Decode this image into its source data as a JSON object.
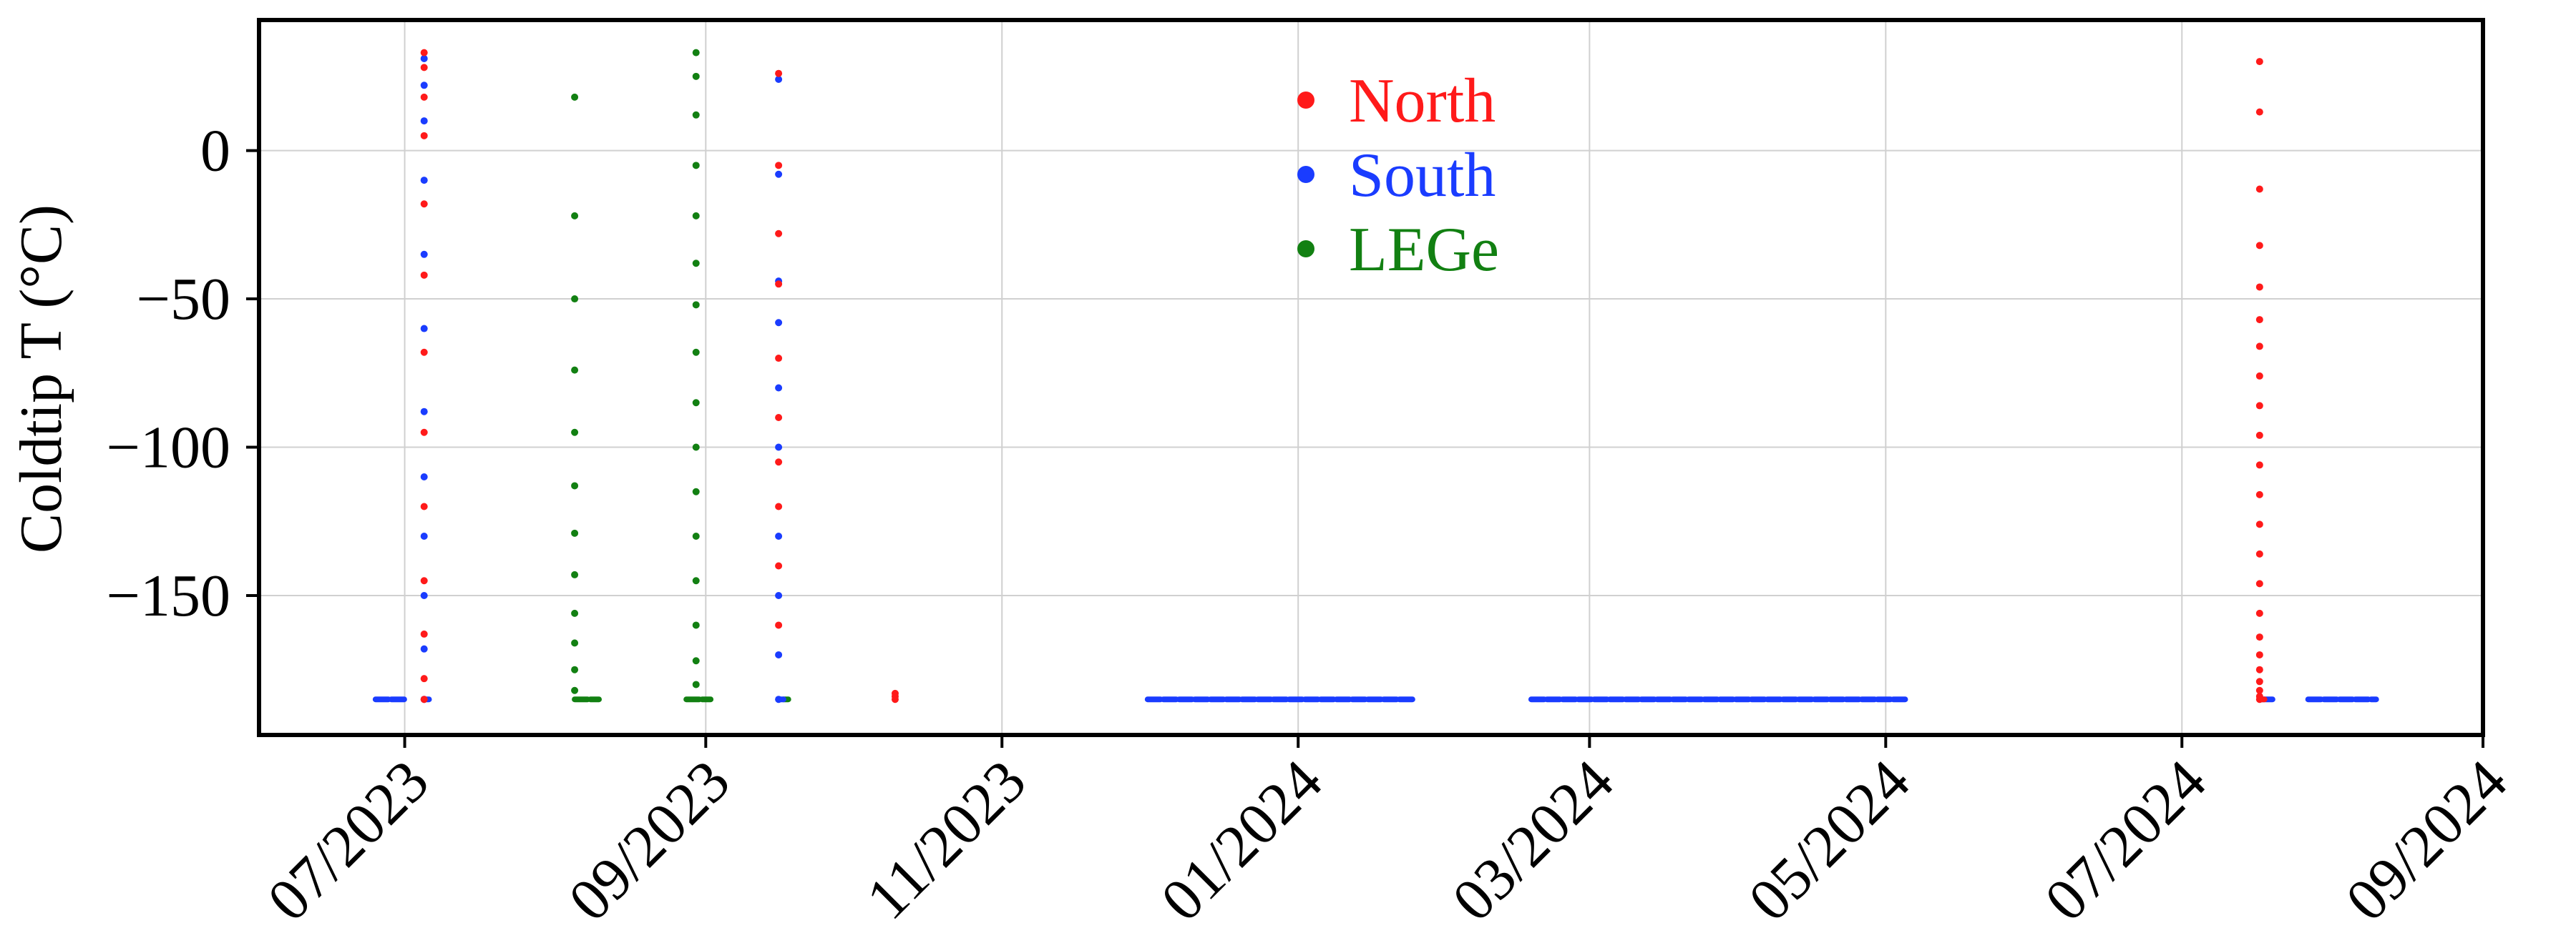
{
  "chart_data": {
    "type": "scatter",
    "title": "",
    "xlabel": "",
    "ylabel": "Coldtip T (°C)",
    "xlim": [
      "2023-06-01",
      "2024-09-01"
    ],
    "ylim": [
      -197,
      44
    ],
    "x_ticks": [
      "2023-07-01",
      "2023-09-01",
      "2023-11-01",
      "2024-01-01",
      "2024-03-01",
      "2024-05-01",
      "2024-07-01",
      "2024-09-01"
    ],
    "x_tick_labels": [
      "07/2023",
      "09/2023",
      "11/2023",
      "01/2024",
      "03/2024",
      "05/2024",
      "07/2024",
      "09/2024"
    ],
    "y_ticks": [
      0,
      -50,
      -100,
      -150
    ],
    "y_tick_labels": [
      "0",
      "−50",
      "−100",
      "−150"
    ],
    "grid": true,
    "legend_position": "top-center",
    "series": [
      {
        "name": "North",
        "color": "#ff1a1a",
        "points": [
          [
            "2023-07-05",
            -185
          ],
          [
            "2023-07-05",
            -178
          ],
          [
            "2023-07-05",
            -163
          ],
          [
            "2023-07-05",
            -145
          ],
          [
            "2023-07-05",
            -120
          ],
          [
            "2023-07-05",
            -95
          ],
          [
            "2023-07-05",
            -68
          ],
          [
            "2023-07-05",
            -42
          ],
          [
            "2023-07-05",
            -18
          ],
          [
            "2023-07-05",
            5
          ],
          [
            "2023-07-05",
            18
          ],
          [
            "2023-07-05",
            28
          ],
          [
            "2023-07-05",
            33
          ],
          [
            "2023-09-16",
            26
          ],
          [
            "2023-09-16",
            -5
          ],
          [
            "2023-09-16",
            -28
          ],
          [
            "2023-09-16",
            -45
          ],
          [
            "2023-09-16",
            -70
          ],
          [
            "2023-09-16",
            -90
          ],
          [
            "2023-09-16",
            -105
          ],
          [
            "2023-09-16",
            -120
          ],
          [
            "2023-09-16",
            -140
          ],
          [
            "2023-09-16",
            -160
          ],
          [
            "2023-10-10",
            -185
          ],
          [
            "2023-10-10",
            -184
          ],
          [
            "2023-10-10",
            -183
          ],
          [
            "2024-07-17",
            30
          ],
          [
            "2024-07-17",
            13
          ],
          [
            "2024-07-17",
            -13
          ],
          [
            "2024-07-17",
            -32
          ],
          [
            "2024-07-17",
            -46
          ],
          [
            "2024-07-17",
            -57
          ],
          [
            "2024-07-17",
            -66
          ],
          [
            "2024-07-17",
            -76
          ],
          [
            "2024-07-17",
            -86
          ],
          [
            "2024-07-17",
            -96
          ],
          [
            "2024-07-17",
            -106
          ],
          [
            "2024-07-17",
            -116
          ],
          [
            "2024-07-17",
            -126
          ],
          [
            "2024-07-17",
            -136
          ],
          [
            "2024-07-17",
            -146
          ],
          [
            "2024-07-17",
            -156
          ],
          [
            "2024-07-17",
            -164
          ],
          [
            "2024-07-17",
            -170
          ],
          [
            "2024-07-17",
            -175
          ],
          [
            "2024-07-17",
            -179
          ],
          [
            "2024-07-17",
            -182
          ],
          [
            "2024-07-17",
            -184
          ],
          [
            "2024-07-17",
            -185
          ]
        ],
        "runs": [
          [
            "2024-07-17",
            "2024-07-18",
            -185
          ]
        ]
      },
      {
        "name": "South",
        "color": "#1a3cff",
        "points": [
          [
            "2023-07-05",
            -185
          ],
          [
            "2023-07-05",
            -168
          ],
          [
            "2023-07-05",
            -150
          ],
          [
            "2023-07-05",
            -130
          ],
          [
            "2023-07-05",
            -110
          ],
          [
            "2023-07-05",
            -88
          ],
          [
            "2023-07-05",
            -60
          ],
          [
            "2023-07-05",
            -35
          ],
          [
            "2023-07-05",
            -10
          ],
          [
            "2023-07-05",
            10
          ],
          [
            "2023-07-05",
            22
          ],
          [
            "2023-07-05",
            31
          ],
          [
            "2023-09-16",
            24
          ],
          [
            "2023-09-16",
            -8
          ],
          [
            "2023-09-16",
            -44
          ],
          [
            "2023-09-16",
            -58
          ],
          [
            "2023-09-16",
            -80
          ],
          [
            "2023-09-16",
            -100
          ],
          [
            "2023-09-16",
            -130
          ],
          [
            "2023-09-16",
            -150
          ],
          [
            "2023-09-16",
            -170
          ],
          [
            "2023-09-16",
            -185
          ]
        ],
        "runs": [
          [
            "2023-06-25",
            "2023-07-01",
            -185
          ],
          [
            "2023-07-05",
            "2023-07-06",
            -185
          ],
          [
            "2023-09-16",
            "2023-09-17",
            -185
          ],
          [
            "2023-12-01",
            "2024-01-25",
            -185
          ],
          [
            "2024-02-18",
            "2024-05-05",
            -185
          ],
          [
            "2024-07-17",
            "2024-07-20",
            -185
          ],
          [
            "2024-07-27",
            "2024-08-10",
            -185
          ]
        ]
      },
      {
        "name": "LEGe",
        "color": "#128012",
        "points": [
          [
            "2023-08-05",
            18
          ],
          [
            "2023-08-05",
            -22
          ],
          [
            "2023-08-05",
            -50
          ],
          [
            "2023-08-05",
            -74
          ],
          [
            "2023-08-05",
            -95
          ],
          [
            "2023-08-05",
            -113
          ],
          [
            "2023-08-05",
            -129
          ],
          [
            "2023-08-05",
            -143
          ],
          [
            "2023-08-05",
            -156
          ],
          [
            "2023-08-05",
            -166
          ],
          [
            "2023-08-05",
            -175
          ],
          [
            "2023-08-05",
            -182
          ],
          [
            "2023-08-30",
            33
          ],
          [
            "2023-08-30",
            25
          ],
          [
            "2023-08-30",
            12
          ],
          [
            "2023-08-30",
            -5
          ],
          [
            "2023-08-30",
            -22
          ],
          [
            "2023-08-30",
            -38
          ],
          [
            "2023-08-30",
            -52
          ],
          [
            "2023-08-30",
            -68
          ],
          [
            "2023-08-30",
            -85
          ],
          [
            "2023-08-30",
            -100
          ],
          [
            "2023-08-30",
            -115
          ],
          [
            "2023-08-30",
            -130
          ],
          [
            "2023-08-30",
            -145
          ],
          [
            "2023-08-30",
            -160
          ],
          [
            "2023-08-30",
            -172
          ],
          [
            "2023-08-30",
            -180
          ]
        ],
        "runs": [
          [
            "2023-08-05",
            "2023-08-10",
            -185
          ],
          [
            "2023-08-28",
            "2023-09-02",
            -185
          ],
          [
            "2023-09-17",
            "2023-09-18",
            -185
          ]
        ]
      }
    ]
  }
}
